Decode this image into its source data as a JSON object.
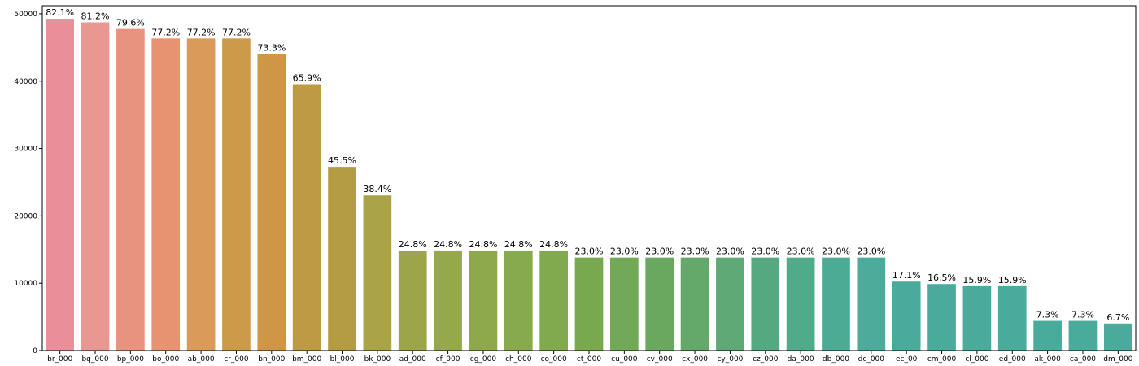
{
  "chart_data": {
    "type": "bar",
    "title": "",
    "xlabel": "",
    "ylabel": "",
    "ylim": [
      0,
      51200
    ],
    "yticks": [
      0,
      10000,
      20000,
      30000,
      40000,
      50000
    ],
    "ytick_labels": [
      "0",
      "10000",
      "20000",
      "30000",
      "40000",
      "50000"
    ],
    "grid": false,
    "legend": "none",
    "categories": [
      "br_000",
      "bq_000",
      "bp_000",
      "bo_000",
      "ab_000",
      "cr_000",
      "bn_000",
      "bm_000",
      "bl_000",
      "bk_000",
      "ad_000",
      "cf_000",
      "cg_000",
      "ch_000",
      "co_000",
      "ct_000",
      "cu_000",
      "cv_000",
      "cx_000",
      "cy_000",
      "cz_000",
      "da_000",
      "db_000",
      "dc_000",
      "ec_00",
      "cm_000",
      "cl_000",
      "ed_000",
      "ak_000",
      "ca_000",
      "dm_000"
    ],
    "values": [
      49264,
      48722,
      47740,
      46333,
      46329,
      46329,
      43989,
      39549,
      27277,
      23034,
      14861,
      14861,
      14861,
      14861,
      14861,
      13808,
      13808,
      13808,
      13808,
      13808,
      13808,
      13808,
      13808,
      13808,
      10239,
      9877,
      9553,
      9553,
      4400,
      4400,
      4009
    ],
    "data_labels": [
      "82.1%",
      "81.2%",
      "79.6%",
      "77.2%",
      "77.2%",
      "77.2%",
      "73.3%",
      "65.9%",
      "45.5%",
      "38.4%",
      "24.8%",
      "24.8%",
      "24.8%",
      "24.8%",
      "24.8%",
      "23.0%",
      "23.0%",
      "23.0%",
      "23.0%",
      "23.0%",
      "23.0%",
      "23.0%",
      "23.0%",
      "23.0%",
      "17.1%",
      "16.5%",
      "15.9%",
      "15.9%",
      "7.3%",
      "7.3%",
      "6.7%"
    ],
    "colors": [
      "#ea8f9a",
      "#e99791",
      "#e8937f",
      "#e8936f",
      "#d99a5a",
      "#cb9b49",
      "#cf9648",
      "#bf9a44",
      "#b49c44",
      "#aaa348",
      "#9ca54a",
      "#95a84b",
      "#8ea94b",
      "#87aa4c",
      "#80aa4d",
      "#78a94f",
      "#72a957",
      "#6aa860",
      "#64a86a",
      "#5ea976",
      "#55a981",
      "#50ab8b",
      "#4cab95",
      "#4cab9a",
      "#4aab9d",
      "#4aab9d",
      "#4aab9d",
      "#4aab9d",
      "#4aab9d",
      "#4aab9d",
      "#4aab9d"
    ]
  }
}
